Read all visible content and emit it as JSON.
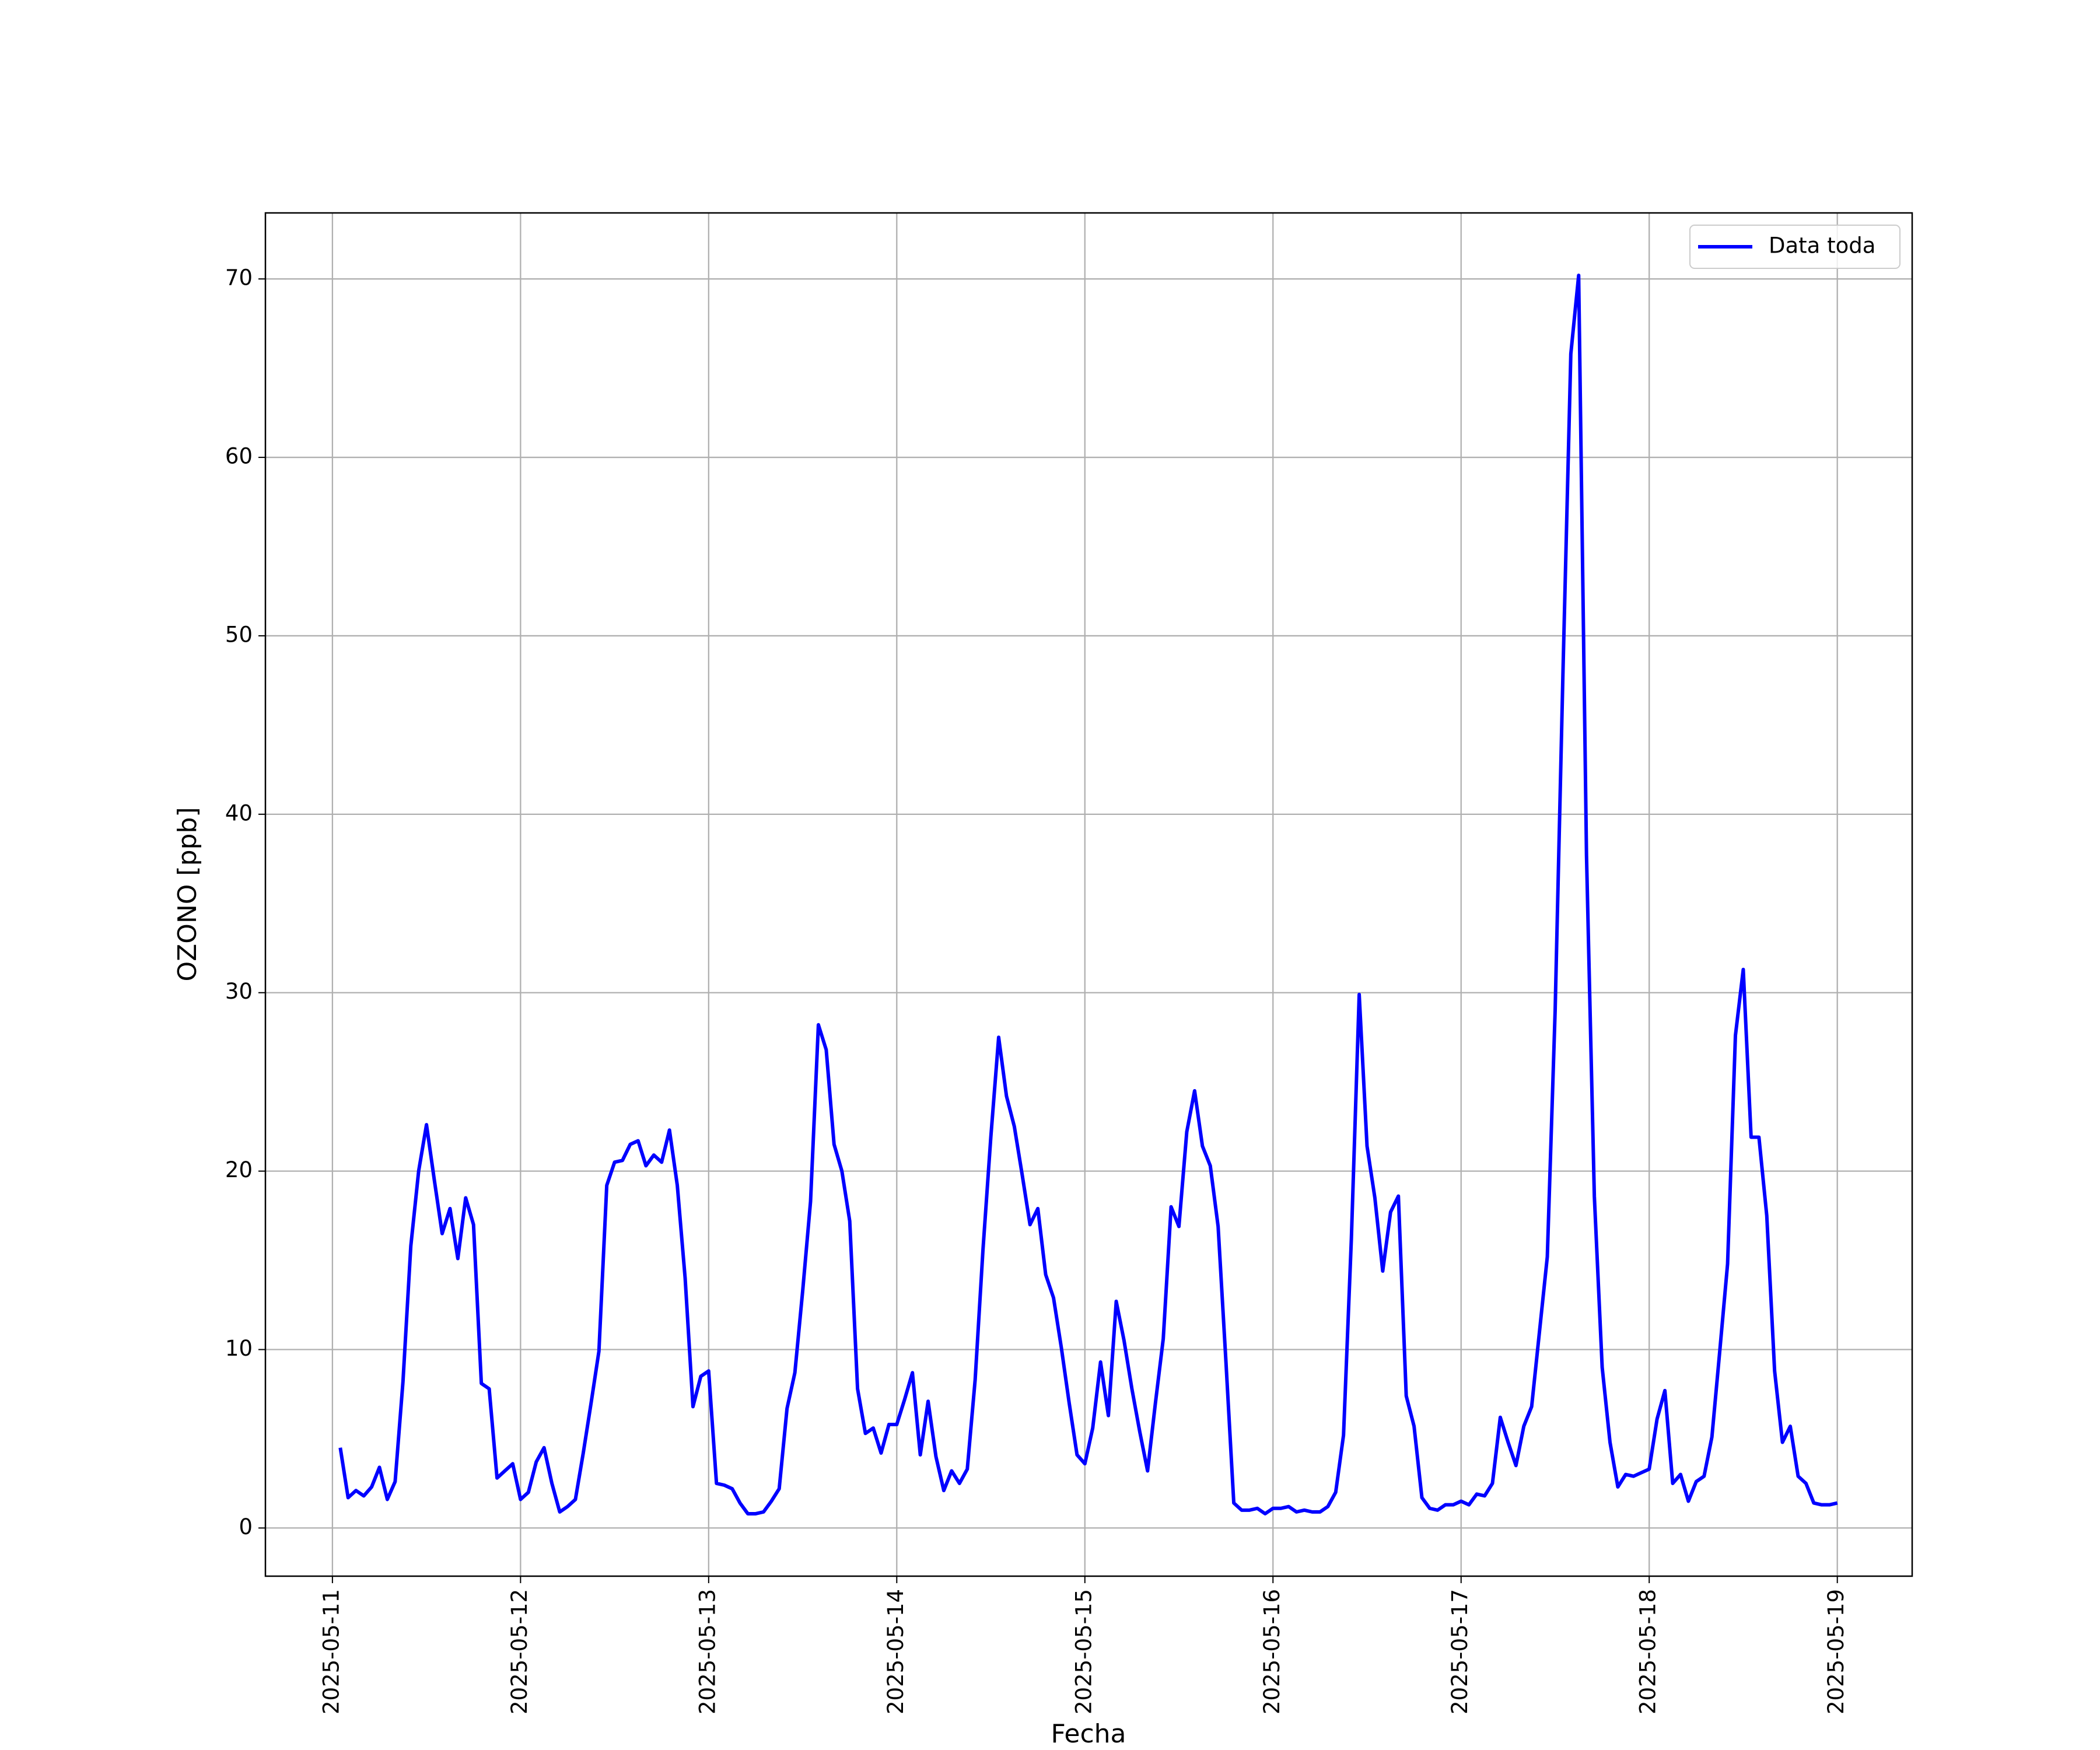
{
  "chart_data": {
    "type": "line",
    "xlabel": "Fecha",
    "ylabel": "OZONO [ppb]",
    "x": [
      "2025-05-11T01:00",
      "2025-05-11T02:00",
      "2025-05-11T03:00",
      "2025-05-11T04:00",
      "2025-05-11T05:00",
      "2025-05-11T06:00",
      "2025-05-11T07:00",
      "2025-05-11T08:00",
      "2025-05-11T09:00",
      "2025-05-11T10:00",
      "2025-05-11T11:00",
      "2025-05-11T12:00",
      "2025-05-11T13:00",
      "2025-05-11T14:00",
      "2025-05-11T15:00",
      "2025-05-11T16:00",
      "2025-05-11T17:00",
      "2025-05-11T18:00",
      "2025-05-11T19:00",
      "2025-05-11T20:00",
      "2025-05-11T21:00",
      "2025-05-11T22:00",
      "2025-05-11T23:00",
      "2025-05-12T00:00",
      "2025-05-12T01:00",
      "2025-05-12T02:00",
      "2025-05-12T03:00",
      "2025-05-12T04:00",
      "2025-05-12T05:00",
      "2025-05-12T06:00",
      "2025-05-12T07:00",
      "2025-05-12T08:00",
      "2025-05-12T09:00",
      "2025-05-12T10:00",
      "2025-05-12T11:00",
      "2025-05-12T12:00",
      "2025-05-12T13:00",
      "2025-05-12T14:00",
      "2025-05-12T15:00",
      "2025-05-12T16:00",
      "2025-05-12T17:00",
      "2025-05-12T18:00",
      "2025-05-12T19:00",
      "2025-05-12T20:00",
      "2025-05-12T21:00",
      "2025-05-12T22:00",
      "2025-05-12T23:00",
      "2025-05-13T00:00",
      "2025-05-13T01:00",
      "2025-05-13T02:00",
      "2025-05-13T03:00",
      "2025-05-13T04:00",
      "2025-05-13T05:00",
      "2025-05-13T06:00",
      "2025-05-13T07:00",
      "2025-05-13T08:00",
      "2025-05-13T09:00",
      "2025-05-13T10:00",
      "2025-05-13T11:00",
      "2025-05-13T12:00",
      "2025-05-13T13:00",
      "2025-05-13T14:00",
      "2025-05-13T15:00",
      "2025-05-13T16:00",
      "2025-05-13T17:00",
      "2025-05-13T18:00",
      "2025-05-13T19:00",
      "2025-05-13T20:00",
      "2025-05-13T21:00",
      "2025-05-13T22:00",
      "2025-05-13T23:00",
      "2025-05-14T00:00",
      "2025-05-14T01:00",
      "2025-05-14T02:00",
      "2025-05-14T03:00",
      "2025-05-14T04:00",
      "2025-05-14T05:00",
      "2025-05-14T06:00",
      "2025-05-14T07:00",
      "2025-05-14T08:00",
      "2025-05-14T09:00",
      "2025-05-14T10:00",
      "2025-05-14T11:00",
      "2025-05-14T12:00",
      "2025-05-14T13:00",
      "2025-05-14T14:00",
      "2025-05-14T15:00",
      "2025-05-14T16:00",
      "2025-05-14T17:00",
      "2025-05-14T18:00",
      "2025-05-14T19:00",
      "2025-05-14T20:00",
      "2025-05-14T21:00",
      "2025-05-14T22:00",
      "2025-05-14T23:00",
      "2025-05-15T00:00",
      "2025-05-15T01:00",
      "2025-05-15T02:00",
      "2025-05-15T03:00",
      "2025-05-15T04:00",
      "2025-05-15T05:00",
      "2025-05-15T06:00",
      "2025-05-15T07:00",
      "2025-05-15T08:00",
      "2025-05-15T09:00",
      "2025-05-15T10:00",
      "2025-05-15T11:00",
      "2025-05-15T12:00",
      "2025-05-15T13:00",
      "2025-05-15T14:00",
      "2025-05-15T15:00",
      "2025-05-15T16:00",
      "2025-05-15T17:00",
      "2025-05-15T18:00",
      "2025-05-15T19:00",
      "2025-05-15T20:00",
      "2025-05-15T21:00",
      "2025-05-15T22:00",
      "2025-05-15T23:00",
      "2025-05-16T00:00",
      "2025-05-16T01:00",
      "2025-05-16T02:00",
      "2025-05-16T03:00",
      "2025-05-16T04:00",
      "2025-05-16T05:00",
      "2025-05-16T06:00",
      "2025-05-16T07:00",
      "2025-05-16T08:00",
      "2025-05-16T09:00",
      "2025-05-16T10:00",
      "2025-05-16T11:00",
      "2025-05-16T12:00",
      "2025-05-16T13:00",
      "2025-05-16T14:00",
      "2025-05-16T15:00",
      "2025-05-16T16:00",
      "2025-05-16T17:00",
      "2025-05-16T18:00",
      "2025-05-16T19:00",
      "2025-05-16T20:00",
      "2025-05-16T21:00",
      "2025-05-16T22:00",
      "2025-05-16T23:00",
      "2025-05-17T00:00",
      "2025-05-17T01:00",
      "2025-05-17T02:00",
      "2025-05-17T03:00",
      "2025-05-17T04:00",
      "2025-05-17T05:00",
      "2025-05-17T06:00",
      "2025-05-17T07:00",
      "2025-05-17T08:00",
      "2025-05-17T09:00",
      "2025-05-17T10:00",
      "2025-05-17T11:00",
      "2025-05-17T12:00",
      "2025-05-17T13:00",
      "2025-05-17T14:00",
      "2025-05-17T15:00",
      "2025-05-17T16:00",
      "2025-05-17T17:00",
      "2025-05-17T18:00",
      "2025-05-17T19:00",
      "2025-05-17T20:00",
      "2025-05-17T21:00",
      "2025-05-17T22:00",
      "2025-05-17T23:00",
      "2025-05-18T00:00",
      "2025-05-18T01:00",
      "2025-05-18T02:00",
      "2025-05-18T03:00",
      "2025-05-18T04:00",
      "2025-05-18T05:00",
      "2025-05-18T06:00",
      "2025-05-18T07:00",
      "2025-05-18T08:00",
      "2025-05-18T09:00",
      "2025-05-18T10:00",
      "2025-05-18T11:00",
      "2025-05-18T12:00",
      "2025-05-18T13:00",
      "2025-05-18T14:00",
      "2025-05-18T15:00",
      "2025-05-18T16:00",
      "2025-05-18T17:00",
      "2025-05-18T18:00",
      "2025-05-18T19:00",
      "2025-05-18T20:00",
      "2025-05-18T21:00",
      "2025-05-18T22:00",
      "2025-05-18T23:00",
      "2025-05-19T00:00"
    ],
    "series": [
      {
        "name": "Data toda",
        "color": "#0000ff",
        "values": [
          4.5,
          1.7,
          2.1,
          1.8,
          2.3,
          3.4,
          1.6,
          2.6,
          8.2,
          15.8,
          20,
          22.6,
          19.5,
          16.5,
          17.9,
          15.1,
          18.5,
          17,
          8.1,
          7.8,
          2.8,
          3.2,
          3.6,
          1.6,
          2,
          3.7,
          4.5,
          2.5,
          0.9,
          1.2,
          1.6,
          4.2,
          7,
          9.9,
          19.2,
          20.5,
          20.6,
          21.5,
          21.7,
          20.3,
          20.9,
          20.5,
          22.3,
          19.2,
          14,
          6.8,
          8.5,
          8.8,
          2.5,
          2.4,
          2.2,
          1.4,
          0.8,
          0.8,
          0.9,
          1.5,
          2.2,
          6.7,
          8.7,
          13.3,
          18.3,
          28.2,
          26.8,
          21.5,
          20,
          17.2,
          7.8,
          5.3,
          5.6,
          4.2,
          5.8,
          5.8,
          7.2,
          8.7,
          4.1,
          7.1,
          4,
          2.1,
          3.2,
          2.5,
          3.3,
          8.3,
          15.6,
          21.9,
          27.5,
          24.2,
          22.5,
          19.8,
          17,
          17.9,
          14.2,
          12.9,
          10.1,
          7,
          4.1,
          3.6,
          5.6,
          9.3,
          6.3,
          12.7,
          10.5,
          7.8,
          5.4,
          3.2,
          7,
          10.6,
          18,
          16.9,
          22.2,
          24.5,
          21.4,
          20.3,
          16.9,
          9.3,
          1.4,
          1,
          1,
          1.1,
          0.8,
          1.1,
          1.1,
          1.2,
          0.9,
          1,
          0.9,
          0.9,
          1.2,
          2,
          5.2,
          16.2,
          29.9,
          21.4,
          18.5,
          14.4,
          17.7,
          18.6,
          7.4,
          5.7,
          1.7,
          1.1,
          1,
          1.3,
          1.3,
          1.5,
          1.3,
          1.9,
          1.8,
          2.5,
          6.2,
          4.8,
          3.5,
          5.7,
          6.8,
          11,
          15.2,
          29,
          48,
          65.8,
          70.2,
          37.7,
          18.6,
          9,
          4.8,
          2.3,
          3,
          2.9,
          3.1,
          3.3,
          6.1,
          7.7,
          2.5,
          3,
          1.5,
          2.6,
          2.9,
          5.1,
          9.9,
          14.8,
          27.6,
          31.3,
          21.9,
          21.9,
          17.5,
          8.8,
          4.8,
          5.7,
          2.9,
          2.5,
          1.4,
          1.3,
          1.3,
          1.4
        ]
      }
    ],
    "xlim": [
      "2025-05-10T15:27",
      "2025-05-19T09:33"
    ],
    "xticks": [
      "2025-05-11",
      "2025-05-12",
      "2025-05-13",
      "2025-05-14",
      "2025-05-15",
      "2025-05-16",
      "2025-05-17",
      "2025-05-18",
      "2025-05-19"
    ],
    "ylim": [
      -2.7,
      73.7
    ],
    "yticks": [
      0,
      10,
      20,
      30,
      40,
      50,
      60,
      70
    ],
    "grid": true,
    "legend": "upper right"
  }
}
